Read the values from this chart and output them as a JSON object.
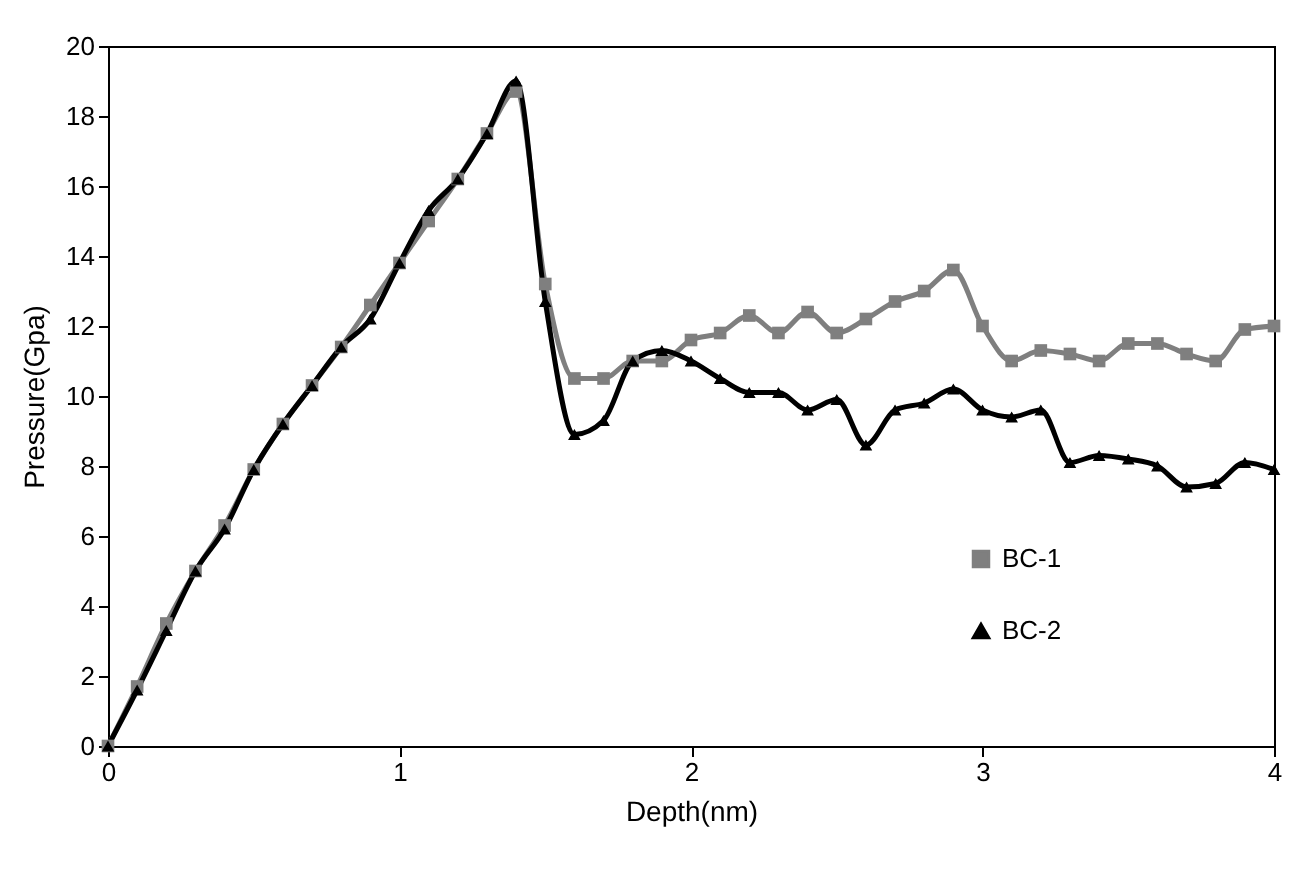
{
  "chart_data": {
    "type": "line",
    "xlabel": "Depth(nm)",
    "ylabel": "Pressure(Gpa)",
    "x": [
      0,
      0.1,
      0.2,
      0.3,
      0.4,
      0.5,
      0.6,
      0.7,
      0.8,
      0.9,
      1.0,
      1.1,
      1.2,
      1.3,
      1.4,
      1.5,
      1.6,
      1.7,
      1.8,
      1.9,
      2.0,
      2.1,
      2.2,
      2.3,
      2.4,
      2.5,
      2.6,
      2.7,
      2.8,
      2.9,
      3.0,
      3.1,
      3.2,
      3.3,
      3.4,
      3.5,
      3.6,
      3.7,
      3.8,
      3.9,
      4.0
    ],
    "series": [
      {
        "name": "BC-1",
        "color": "#7f7f7f",
        "marker": "square",
        "values": [
          0,
          1.7,
          3.5,
          5,
          6.3,
          7.9,
          9.2,
          10.3,
          11.4,
          12.6,
          13.8,
          15.0,
          16.2,
          17.5,
          18.7,
          13.2,
          10.5,
          10.5,
          11.0,
          11.0,
          11.6,
          11.8,
          12.3,
          11.8,
          12.4,
          11.8,
          12.2,
          12.7,
          13.0,
          13.6,
          12.0,
          11.0,
          11.3,
          11.2,
          11.0,
          11.5,
          11.5,
          11.2,
          11.0,
          11.9,
          12.0
        ]
      },
      {
        "name": "BC-2",
        "color": "#000000",
        "marker": "triangle",
        "values": [
          0,
          1.6,
          3.3,
          5,
          6.2,
          7.9,
          9.2,
          10.3,
          11.4,
          12.2,
          13.8,
          15.3,
          16.2,
          17.5,
          19.0,
          12.7,
          8.9,
          9.3,
          11.0,
          11.3,
          11.0,
          10.5,
          10.1,
          10.1,
          9.6,
          9.9,
          8.6,
          9.6,
          9.8,
          10.2,
          9.6,
          9.4,
          9.6,
          8.1,
          8.3,
          8.2,
          8.0,
          7.4,
          7.5,
          8.1,
          7.9
        ]
      }
    ],
    "xlim": [
      0,
      4
    ],
    "xticks": [
      0,
      1,
      2,
      3,
      4
    ],
    "ylim": [
      0,
      20
    ],
    "yticks": [
      0,
      2,
      4,
      6,
      8,
      10,
      12,
      14,
      16,
      18,
      20
    ],
    "grid": false,
    "legend": "right"
  }
}
